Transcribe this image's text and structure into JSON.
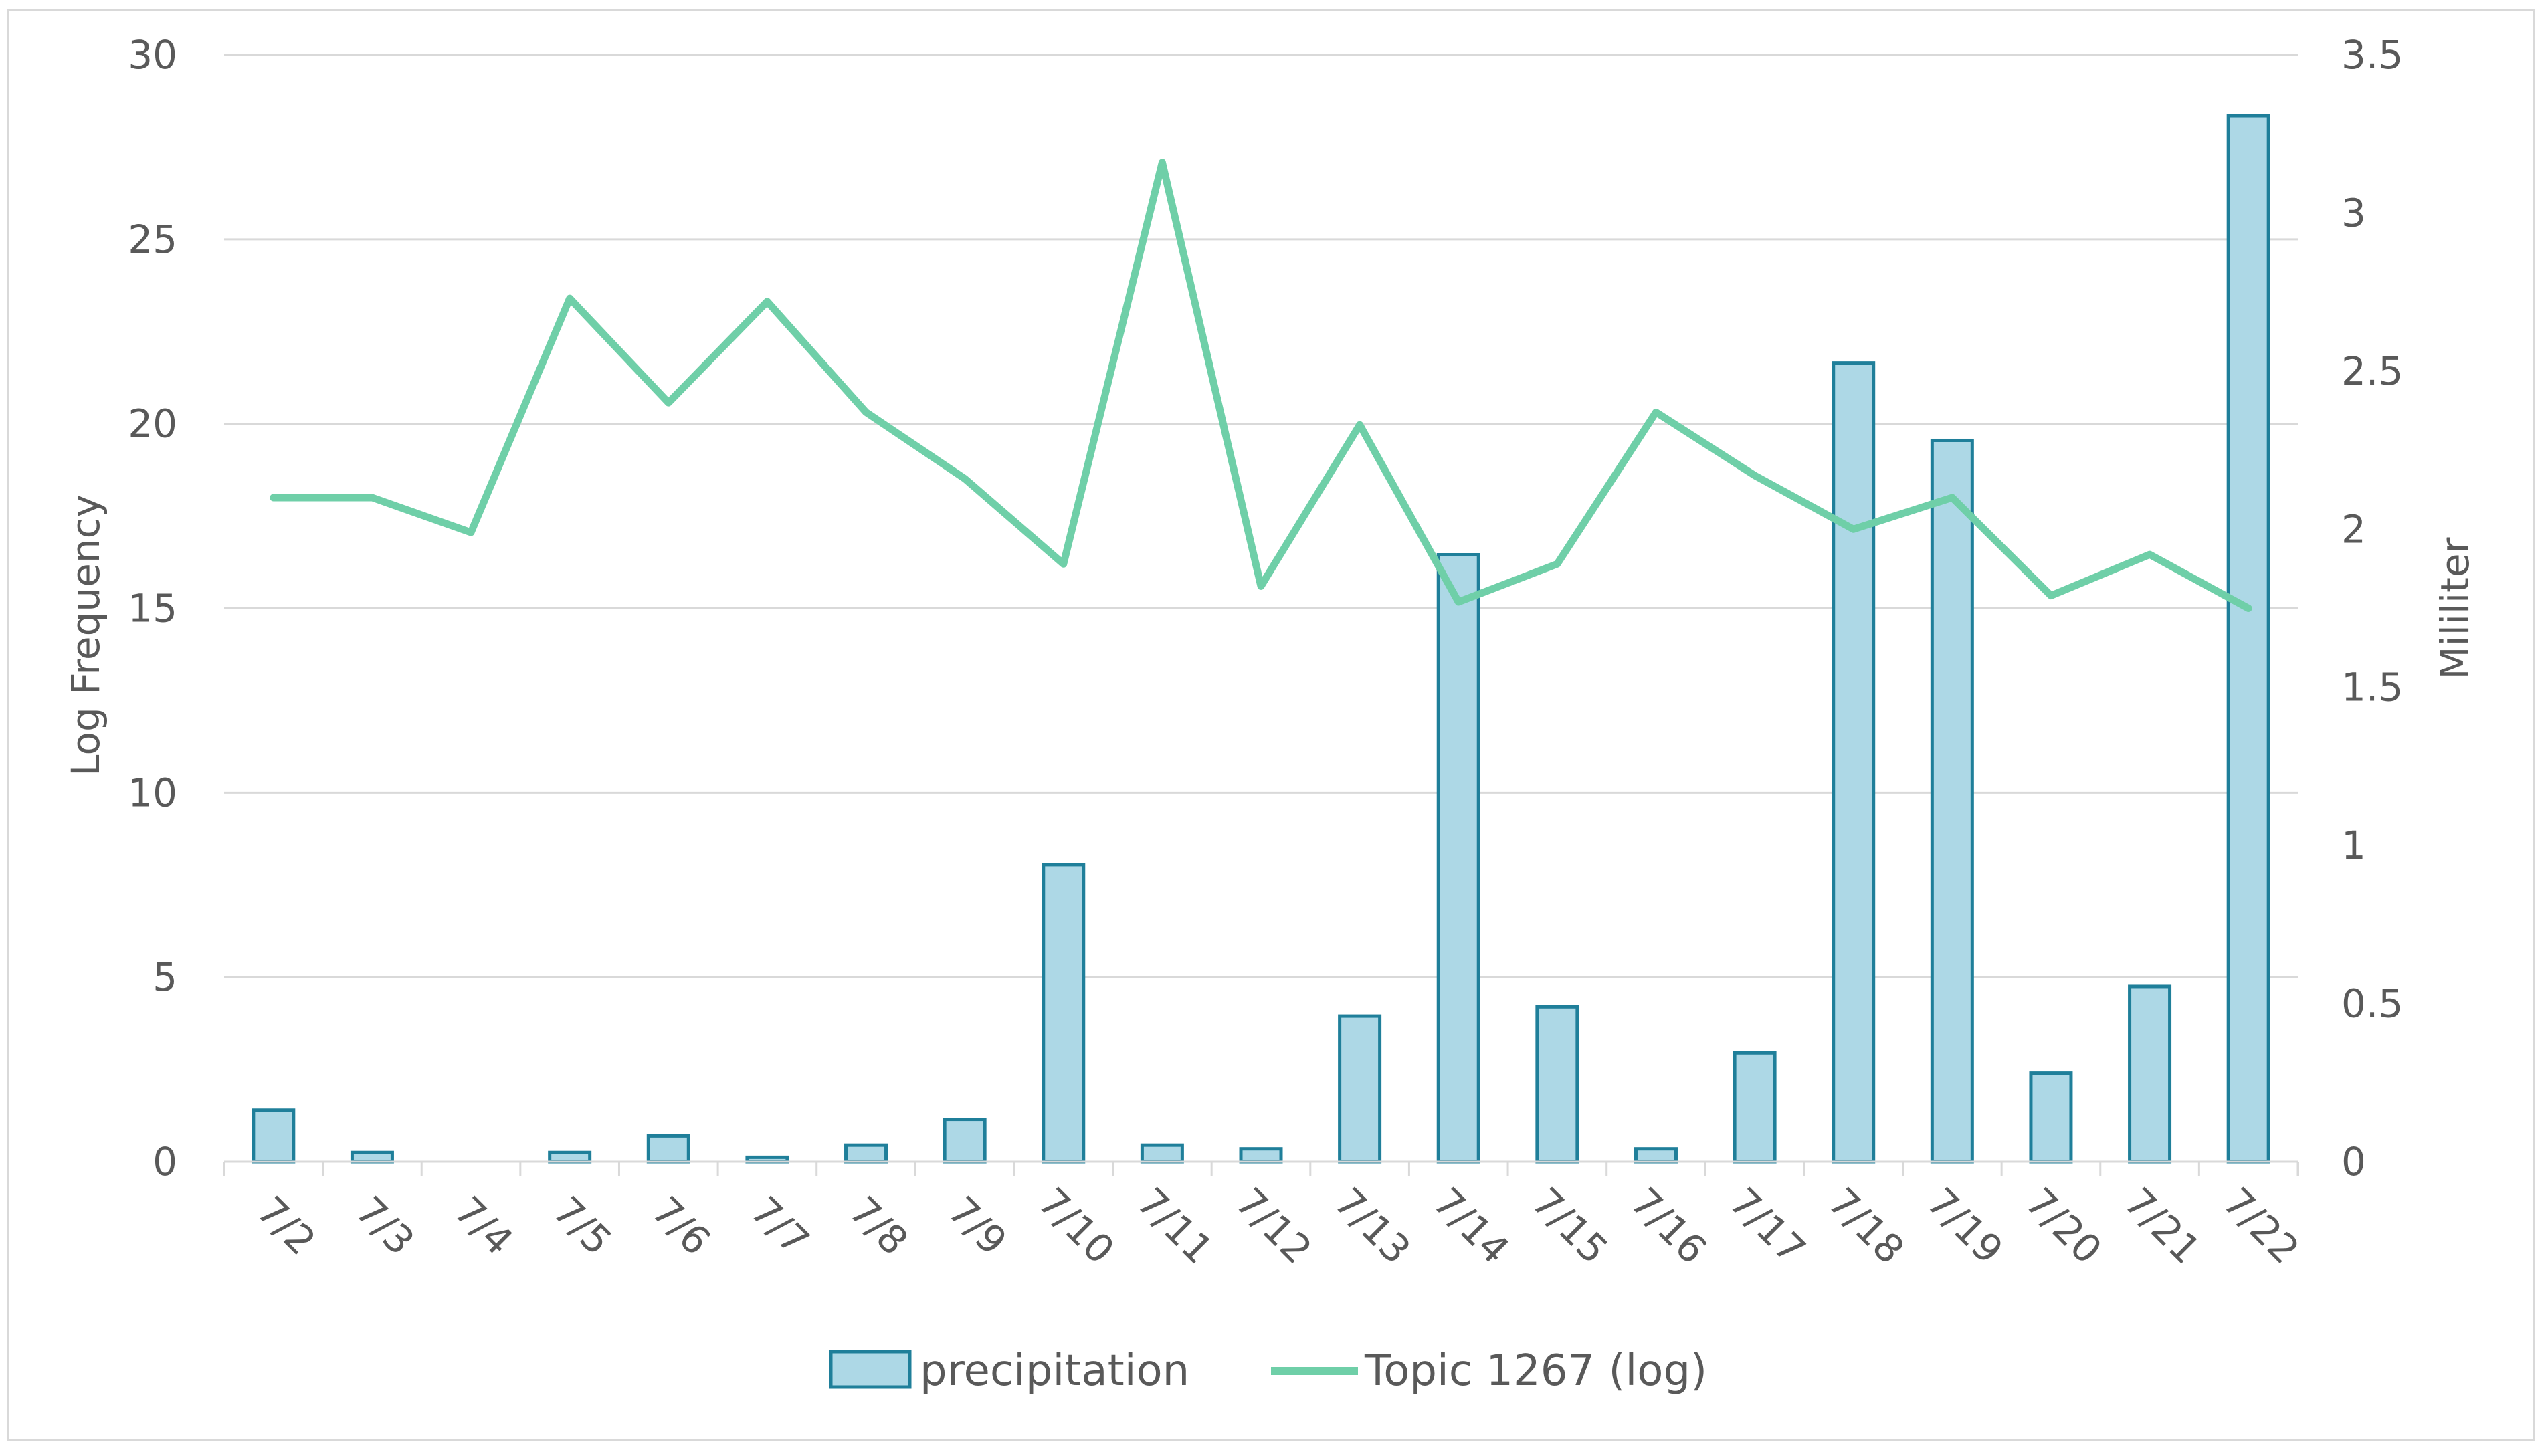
{
  "chart_data": {
    "type": "bar+line",
    "title": "",
    "categories": [
      "7/2",
      "7/3",
      "7/4",
      "7/5",
      "7/6",
      "7/7",
      "7/8",
      "7/9",
      "7/10",
      "7/11",
      "7/12",
      "7/13",
      "7/14",
      "7/15",
      "7/16",
      "7/17",
      "7/18",
      "7/19",
      "7/20",
      "7/21",
      "7/22"
    ],
    "left_axis": {
      "label": "Log Frequency",
      "ylim": [
        0,
        30
      ],
      "ticks": [
        "0",
        "5",
        "10",
        "15",
        "20",
        "25",
        "30"
      ]
    },
    "right_axis": {
      "label": "Mililiter",
      "ylim": [
        0,
        3.5
      ],
      "ticks": [
        "0",
        "0.5",
        "1",
        "1.5",
        "2",
        "2.5",
        "3",
        "3.5"
      ]
    },
    "series": [
      {
        "name": "precipitation",
        "type": "bar",
        "axis": "left",
        "color": "#add8e6",
        "stroke": "#1f7f9a",
        "values": [
          1.4,
          0.25,
          0,
          0.25,
          0.7,
          0.12,
          0.45,
          1.15,
          8.05,
          0.45,
          0.35,
          3.95,
          16.45,
          4.2,
          0.35,
          2.95,
          21.65,
          19.55,
          2.4,
          4.75,
          28.35
        ]
      },
      {
        "name": "Topic 1267 (log)",
        "type": "line",
        "axis": "right",
        "color": "#6fcfa8",
        "values": [
          2.1,
          2.1,
          1.99,
          2.73,
          2.4,
          2.72,
          2.37,
          2.16,
          1.89,
          3.16,
          1.82,
          2.33,
          1.77,
          1.89,
          2.37,
          2.17,
          2.0,
          2.1,
          1.79,
          1.92,
          1.75
        ]
      }
    ],
    "grid": true,
    "legend_position": "bottom"
  }
}
